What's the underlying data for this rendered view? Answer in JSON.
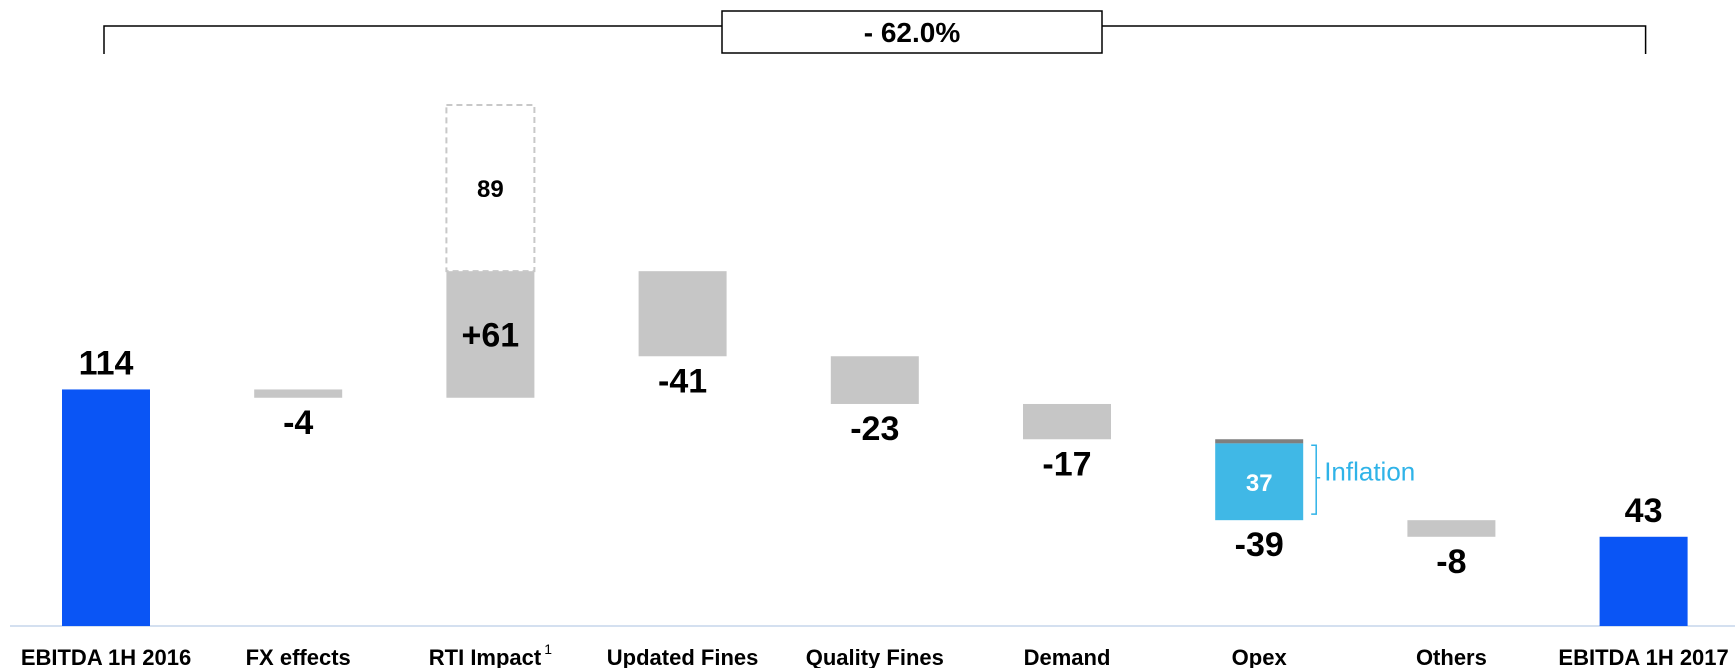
{
  "chart_data": {
    "type": "bar",
    "subtype": "waterfall",
    "title": "",
    "xlabel": "",
    "ylabel": "",
    "ylim": [
      0,
      124
    ],
    "grid": false,
    "legend": "none",
    "categories": [
      "EBITDA 1H 2016",
      "FX effects",
      "RTI Impact",
      "Updated Fines",
      "Quality Fines",
      "Demand",
      "Opex",
      "Others",
      "EBITDA 1H 2017"
    ],
    "category_superscripts": [
      "",
      "",
      "1",
      "",
      "",
      "",
      "",
      "",
      ""
    ],
    "values": [
      114,
      -4,
      61,
      -41,
      -23,
      -17,
      -39,
      -8,
      43
    ],
    "value_labels": [
      "114",
      "-4",
      "+61",
      "-41",
      "-23",
      "-17",
      "-39",
      "-8",
      "43"
    ],
    "bar_kinds": [
      "total",
      "delta",
      "delta",
      "delta",
      "delta",
      "delta",
      "delta",
      "delta",
      "total"
    ],
    "rti_potential": {
      "value": 89,
      "label": "89"
    },
    "opex_breakdown": {
      "inflation_value": 37,
      "inflation_label": "37",
      "bracket_label": "Inflation"
    },
    "overall_change_label": "- 62.0%",
    "colors": {
      "total": "#0a55f5",
      "delta": "#c6c6c6",
      "inflation": "#40b8e6",
      "inflation_text": "#2fb3e8",
      "opex_cap": "#7f7f7f",
      "dashed": "#c8c8c8",
      "axis": "#c5d5ec"
    }
  }
}
